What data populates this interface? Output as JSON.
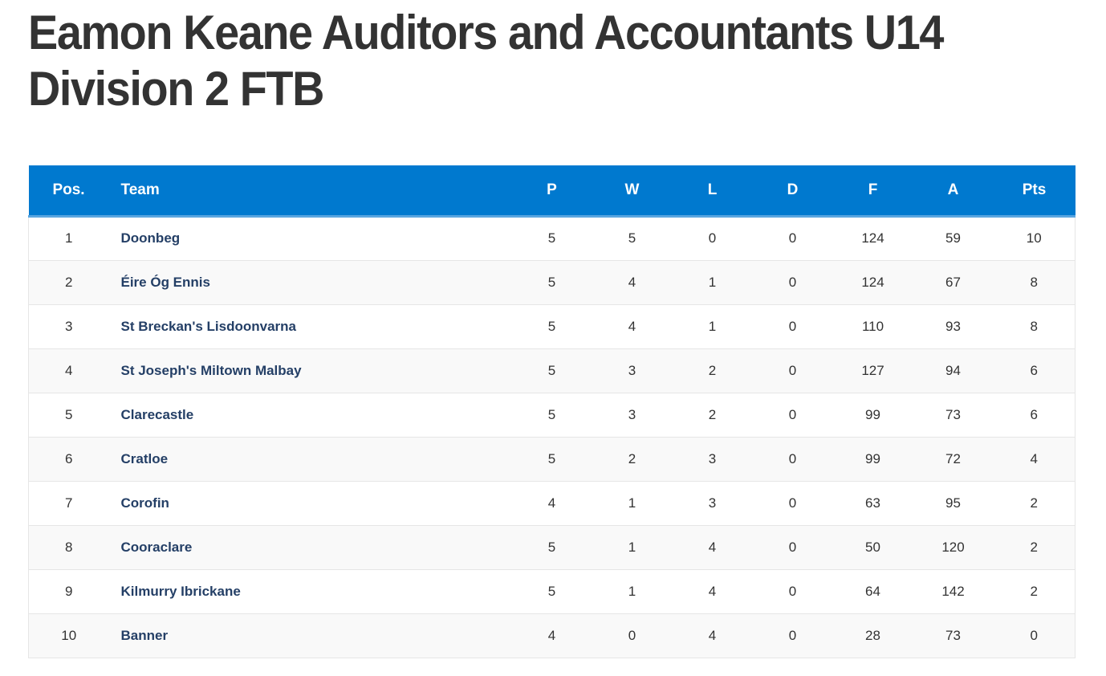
{
  "page": {
    "title": "Eamon Keane Auditors and Accountants U14 Division 2 FTB"
  },
  "table": {
    "headers": {
      "pos": "Pos.",
      "team": "Team",
      "p": "P",
      "w": "W",
      "l": "L",
      "d": "D",
      "f": "F",
      "a": "A",
      "pts": "Pts"
    },
    "rows": [
      {
        "pos": "1",
        "team": "Doonbeg",
        "p": "5",
        "w": "5",
        "l": "0",
        "d": "0",
        "f": "124",
        "a": "59",
        "pts": "10"
      },
      {
        "pos": "2",
        "team": "Éire Óg Ennis",
        "p": "5",
        "w": "4",
        "l": "1",
        "d": "0",
        "f": "124",
        "a": "67",
        "pts": "8"
      },
      {
        "pos": "3",
        "team": "St Breckan's Lisdoonvarna",
        "p": "5",
        "w": "4",
        "l": "1",
        "d": "0",
        "f": "110",
        "a": "93",
        "pts": "8"
      },
      {
        "pos": "4",
        "team": "St Joseph's Miltown Malbay",
        "p": "5",
        "w": "3",
        "l": "2",
        "d": "0",
        "f": "127",
        "a": "94",
        "pts": "6"
      },
      {
        "pos": "5",
        "team": "Clarecastle",
        "p": "5",
        "w": "3",
        "l": "2",
        "d": "0",
        "f": "99",
        "a": "73",
        "pts": "6"
      },
      {
        "pos": "6",
        "team": "Cratloe",
        "p": "5",
        "w": "2",
        "l": "3",
        "d": "0",
        "f": "99",
        "a": "72",
        "pts": "4"
      },
      {
        "pos": "7",
        "team": "Corofin",
        "p": "4",
        "w": "1",
        "l": "3",
        "d": "0",
        "f": "63",
        "a": "95",
        "pts": "2"
      },
      {
        "pos": "8",
        "team": "Cooraclare",
        "p": "5",
        "w": "1",
        "l": "4",
        "d": "0",
        "f": "50",
        "a": "120",
        "pts": "2"
      },
      {
        "pos": "9",
        "team": "Kilmurry Ibrickane",
        "p": "5",
        "w": "1",
        "l": "4",
        "d": "0",
        "f": "64",
        "a": "142",
        "pts": "2"
      },
      {
        "pos": "10",
        "team": "Banner",
        "p": "4",
        "w": "0",
        "l": "4",
        "d": "0",
        "f": "28",
        "a": "73",
        "pts": "0"
      }
    ]
  },
  "colors": {
    "header_bg": "#0079cf",
    "header_text": "#ffffff",
    "team_link": "#243f66",
    "title_text": "#333333"
  }
}
